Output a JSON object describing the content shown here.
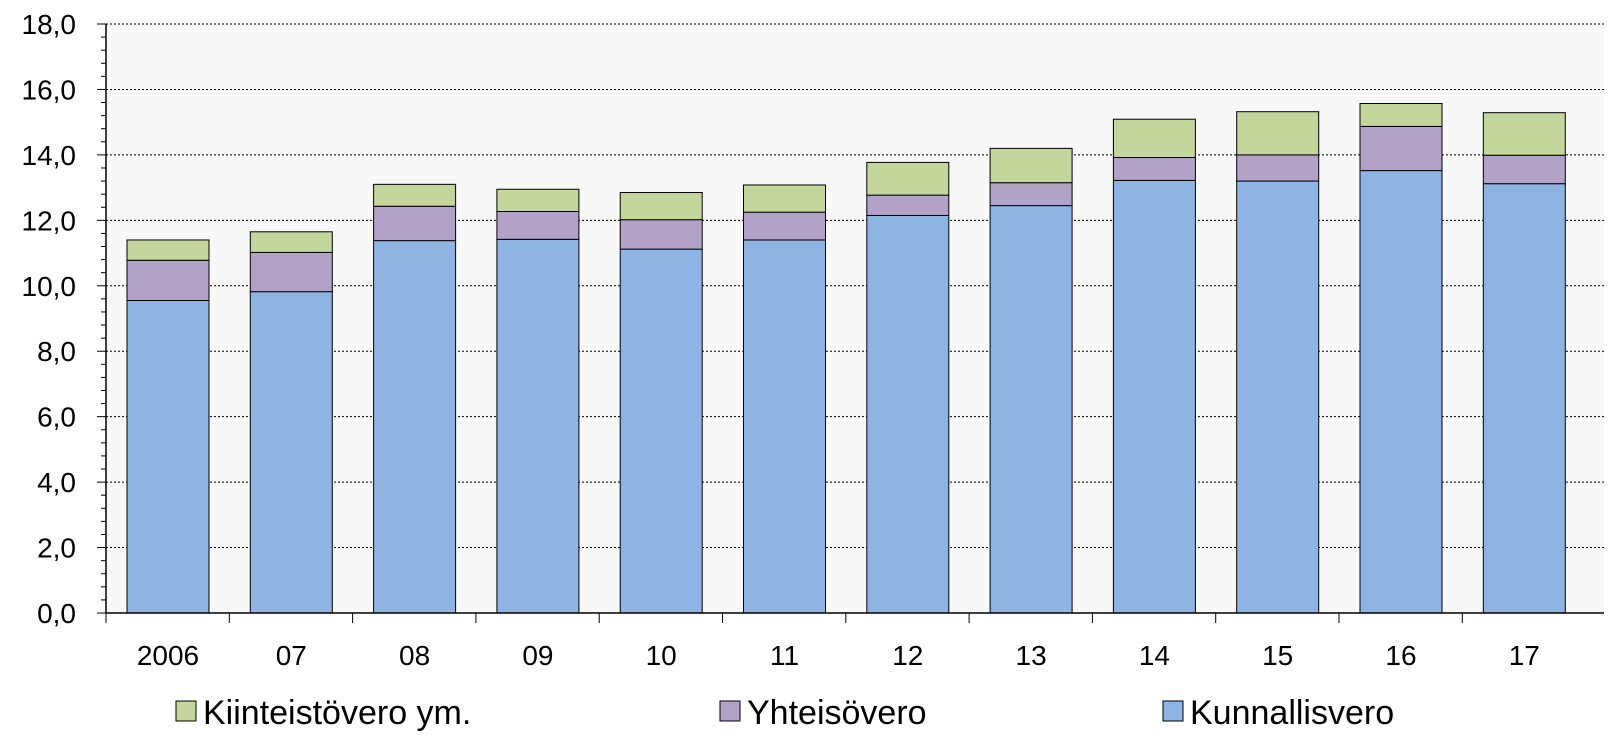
{
  "chart_data": {
    "type": "bar",
    "stacked": true,
    "categories": [
      "2006",
      "07",
      "08",
      "09",
      "10",
      "11",
      "12",
      "13",
      "14",
      "15",
      "16",
      "17"
    ],
    "series": [
      {
        "name": "Kunnallisvero",
        "color": "#8EB4E3",
        "values": [
          9.55,
          9.82,
          11.38,
          11.42,
          11.12,
          11.4,
          12.15,
          12.45,
          13.22,
          13.2,
          13.52,
          13.12
        ]
      },
      {
        "name": "Yhteisövero",
        "color": "#B3A2C7",
        "values": [
          1.23,
          1.2,
          1.05,
          0.85,
          0.9,
          0.85,
          0.62,
          0.7,
          0.7,
          0.8,
          1.35,
          0.87
        ]
      },
      {
        "name": "Kiinteistövero ym.",
        "color": "#C3D69B",
        "values": [
          0.62,
          0.63,
          0.67,
          0.68,
          0.83,
          0.83,
          1.0,
          1.05,
          1.17,
          1.32,
          0.7,
          1.3
        ]
      }
    ],
    "ylim": [
      0,
      18
    ],
    "yticks": [
      "0,0",
      "2,0",
      "4,0",
      "6,0",
      "8,0",
      "10,0",
      "12,0",
      "14,0",
      "16,0",
      "18,0"
    ],
    "grid": true,
    "plot_background": "#F8F8F8",
    "legend_position": "bottom",
    "legend_order": [
      "Kiinteistövero ym.",
      "Yhteisövero",
      "Kunnallisvero"
    ],
    "title": "",
    "xlabel": "",
    "ylabel": ""
  }
}
